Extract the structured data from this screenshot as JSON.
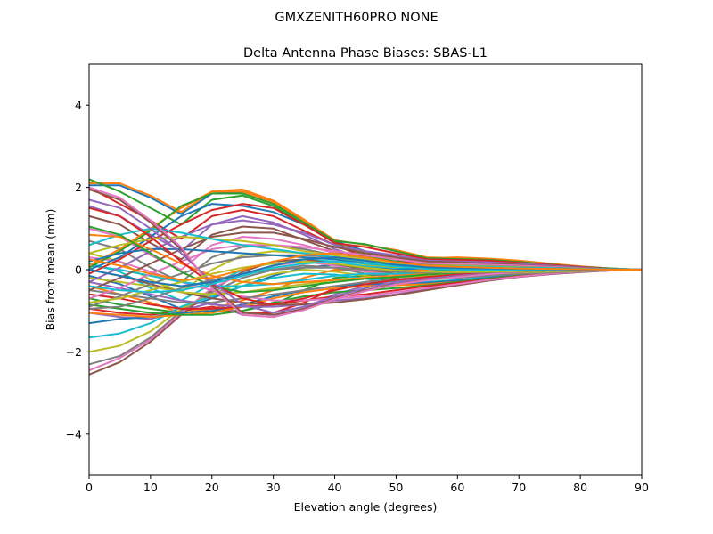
{
  "suptitle": "GMXZENITH60PRO  NONE",
  "chart_data": {
    "type": "line",
    "title": "Delta Antenna Phase Biases: SBAS-L1",
    "xlabel": "Elevation angle (degrees)",
    "ylabel": "Bias from mean (mm)",
    "xlim": [
      0,
      90
    ],
    "ylim": [
      -5,
      5
    ],
    "xticks": [
      "0",
      "10",
      "20",
      "30",
      "40",
      "50",
      "60",
      "70",
      "80",
      "90"
    ],
    "yticks": [
      "−4",
      "−2",
      "0",
      "2",
      "4"
    ],
    "grid": false,
    "legend": "none",
    "x": [
      0,
      5,
      10,
      15,
      20,
      25,
      30,
      35,
      40,
      45,
      50,
      55,
      60,
      65,
      70,
      75,
      80,
      85,
      90
    ],
    "palette": [
      "#1f77b4",
      "#ff7f0e",
      "#2ca02c",
      "#d62728",
      "#9467bd",
      "#8c564b",
      "#e377c2",
      "#7f7f7f",
      "#bcbd22",
      "#17becf"
    ],
    "series": [
      {
        "values": [
          2.05,
          2.05,
          1.75,
          1.35,
          1.85,
          1.9,
          1.65,
          1.2,
          0.7,
          0.35,
          0.2,
          0.25,
          0.25,
          0.2,
          0.18,
          0.13,
          0.07,
          0.03,
          0.0
        ]
      },
      {
        "values": [
          2.1,
          2.1,
          1.8,
          1.4,
          1.9,
          1.95,
          1.68,
          1.22,
          0.7,
          0.4,
          0.25,
          0.28,
          0.3,
          0.27,
          0.22,
          0.15,
          0.08,
          0.03,
          0.0
        ]
      },
      {
        "values": [
          2.2,
          1.9,
          1.5,
          1.1,
          1.7,
          1.8,
          1.55,
          1.1,
          0.65,
          0.35,
          0.2,
          0.22,
          0.25,
          0.22,
          0.18,
          0.12,
          0.06,
          0.02,
          0.0
        ]
      },
      {
        "values": [
          2.0,
          1.6,
          1.2,
          0.75,
          1.3,
          1.45,
          1.3,
          0.95,
          0.6,
          0.3,
          0.18,
          0.18,
          0.2,
          0.18,
          0.14,
          0.1,
          0.05,
          0.02,
          0.0
        ]
      },
      {
        "values": [
          1.55,
          1.3,
          0.85,
          0.45,
          1.1,
          1.3,
          1.15,
          0.85,
          0.5,
          0.25,
          0.12,
          0.14,
          0.16,
          0.15,
          0.12,
          0.08,
          0.04,
          0.02,
          0.0
        ]
      },
      {
        "values": [
          1.3,
          1.1,
          0.65,
          0.25,
          0.85,
          1.05,
          1.0,
          0.72,
          0.45,
          0.2,
          0.1,
          0.12,
          0.14,
          0.13,
          0.1,
          0.07,
          0.04,
          0.01,
          0.0
        ]
      },
      {
        "values": [
          1.0,
          0.8,
          0.35,
          0.0,
          0.6,
          0.8,
          0.75,
          0.6,
          0.4,
          0.2,
          0.1,
          0.12,
          0.14,
          0.12,
          0.09,
          0.06,
          0.03,
          0.01,
          0.0
        ]
      },
      {
        "values": [
          0.7,
          0.5,
          0.05,
          -0.3,
          0.3,
          0.55,
          0.6,
          0.5,
          0.35,
          0.15,
          0.08,
          0.1,
          0.12,
          0.1,
          0.08,
          0.05,
          0.03,
          0.01,
          0.0
        ]
      },
      {
        "values": [
          0.4,
          0.2,
          -0.25,
          -0.55,
          0.0,
          0.35,
          0.45,
          0.4,
          0.3,
          0.12,
          0.05,
          0.08,
          0.1,
          0.09,
          0.07,
          0.05,
          0.02,
          0.01,
          0.0
        ]
      },
      {
        "values": [
          0.15,
          -0.05,
          -0.45,
          -0.75,
          -0.35,
          0.0,
          0.2,
          0.25,
          0.2,
          0.08,
          0.02,
          0.05,
          0.08,
          0.07,
          0.05,
          0.03,
          0.02,
          0.0,
          0.0
        ]
      },
      {
        "values": [
          -0.15,
          -0.35,
          -0.65,
          -0.95,
          -0.7,
          -0.4,
          -0.15,
          0.05,
          0.12,
          0.05,
          0.0,
          0.03,
          0.05,
          0.05,
          0.04,
          0.03,
          0.01,
          0.0,
          0.0
        ]
      },
      {
        "values": [
          -0.4,
          -0.6,
          -0.8,
          -1.05,
          -0.95,
          -0.75,
          -0.5,
          -0.2,
          0.0,
          -0.02,
          -0.05,
          0.0,
          0.03,
          0.03,
          0.02,
          0.02,
          0.01,
          0.0,
          0.0
        ]
      },
      {
        "values": [
          -0.7,
          -0.85,
          -0.95,
          -1.05,
          -1.0,
          -1.0,
          -0.85,
          -0.5,
          -0.2,
          -0.15,
          -0.1,
          -0.05,
          0.0,
          0.01,
          0.01,
          0.01,
          0.0,
          0.0,
          0.0
        ]
      },
      {
        "values": [
          -0.95,
          -1.05,
          -1.1,
          -1.0,
          -0.9,
          -1.05,
          -1.05,
          -0.8,
          -0.45,
          -0.3,
          -0.2,
          -0.1,
          -0.05,
          -0.02,
          0.0,
          0.0,
          0.0,
          0.0,
          0.0
        ]
      },
      {
        "values": [
          -1.05,
          -1.15,
          -1.2,
          -1.0,
          -0.8,
          -1.1,
          -1.15,
          -0.95,
          -0.6,
          -0.4,
          -0.25,
          -0.15,
          -0.08,
          -0.04,
          -0.02,
          -0.01,
          0.0,
          0.0,
          0.0
        ]
      },
      {
        "values": [
          -2.55,
          -2.25,
          -1.75,
          -1.1,
          -0.5,
          -0.05,
          0.2,
          0.25,
          0.15,
          0.0,
          -0.1,
          -0.12,
          -0.1,
          -0.08,
          -0.06,
          -0.04,
          -0.02,
          -0.01,
          0.0
        ]
      },
      {
        "values": [
          -2.45,
          -2.15,
          -1.7,
          -1.05,
          -0.45,
          -0.1,
          0.1,
          0.2,
          0.1,
          -0.05,
          -0.12,
          -0.15,
          -0.13,
          -0.1,
          -0.07,
          -0.05,
          -0.03,
          -0.01,
          0.0
        ]
      },
      {
        "values": [
          -2.3,
          -2.1,
          -1.65,
          -1.0,
          -0.55,
          -0.2,
          0.0,
          0.1,
          0.05,
          -0.1,
          -0.18,
          -0.2,
          -0.17,
          -0.13,
          -0.09,
          -0.06,
          -0.03,
          -0.01,
          0.0
        ]
      },
      {
        "values": [
          -2.0,
          -1.85,
          -1.5,
          -0.95,
          -0.6,
          -0.3,
          -0.1,
          0.0,
          -0.05,
          -0.15,
          -0.25,
          -0.25,
          -0.2,
          -0.15,
          -0.1,
          -0.07,
          -0.04,
          -0.01,
          0.0
        ]
      },
      {
        "values": [
          -1.65,
          -1.55,
          -1.3,
          -0.9,
          -0.65,
          -0.4,
          -0.2,
          -0.1,
          -0.12,
          -0.22,
          -0.3,
          -0.3,
          -0.25,
          -0.18,
          -0.12,
          -0.08,
          -0.04,
          -0.02,
          0.0
        ]
      },
      {
        "values": [
          -1.3,
          -1.2,
          -1.15,
          -1.05,
          -1.0,
          -0.85,
          -0.65,
          -0.5,
          -0.4,
          -0.35,
          -0.35,
          -0.32,
          -0.27,
          -0.2,
          -0.14,
          -0.09,
          -0.05,
          -0.02,
          0.0
        ]
      },
      {
        "values": [
          -1.05,
          -1.1,
          -1.15,
          -1.1,
          -1.05,
          -0.9,
          -0.7,
          -0.55,
          -0.45,
          -0.4,
          -0.38,
          -0.35,
          -0.3,
          -0.22,
          -0.15,
          -0.1,
          -0.05,
          -0.02,
          0.0
        ]
      },
      {
        "values": [
          -0.85,
          -0.95,
          -1.05,
          -1.1,
          -1.1,
          -1.0,
          -0.8,
          -0.65,
          -0.55,
          -0.5,
          -0.45,
          -0.38,
          -0.3,
          -0.22,
          -0.15,
          -0.1,
          -0.05,
          -0.02,
          0.0
        ]
      },
      {
        "values": [
          -0.6,
          -0.7,
          -0.85,
          -0.95,
          -0.95,
          -0.9,
          -0.85,
          -0.75,
          -0.65,
          -0.6,
          -0.5,
          -0.4,
          -0.32,
          -0.24,
          -0.16,
          -0.1,
          -0.05,
          -0.02,
          0.0
        ]
      },
      {
        "values": [
          -0.3,
          -0.45,
          -0.6,
          -0.75,
          -0.85,
          -0.9,
          -0.9,
          -0.85,
          -0.75,
          -0.7,
          -0.6,
          -0.48,
          -0.36,
          -0.26,
          -0.17,
          -0.11,
          -0.06,
          -0.02,
          0.0
        ]
      },
      {
        "values": [
          0.0,
          -0.15,
          -0.35,
          -0.55,
          -0.7,
          -0.8,
          -0.85,
          -0.85,
          -0.8,
          -0.72,
          -0.62,
          -0.5,
          -0.38,
          -0.27,
          -0.18,
          -0.11,
          -0.06,
          -0.02,
          0.0
        ]
      },
      {
        "values": [
          0.3,
          0.2,
          -0.05,
          -0.3,
          -0.5,
          -0.65,
          -0.75,
          -0.75,
          -0.7,
          -0.65,
          -0.55,
          -0.45,
          -0.35,
          -0.25,
          -0.17,
          -0.1,
          -0.05,
          -0.02,
          0.0
        ]
      },
      {
        "values": [
          -0.5,
          -0.6,
          -0.7,
          -0.8,
          -0.8,
          -0.7,
          -0.6,
          -0.5,
          -0.4,
          -0.3,
          -0.25,
          -0.22,
          -0.2,
          -0.15,
          -0.1,
          -0.07,
          -0.04,
          -0.01,
          0.0
        ]
      },
      {
        "values": [
          -0.2,
          -0.3,
          -0.4,
          -0.55,
          -0.6,
          -0.55,
          -0.45,
          -0.35,
          -0.25,
          -0.2,
          -0.18,
          -0.15,
          -0.13,
          -0.1,
          -0.07,
          -0.05,
          -0.03,
          -0.01,
          0.0
        ]
      },
      {
        "values": [
          0.1,
          0.0,
          -0.15,
          -0.3,
          -0.4,
          -0.4,
          -0.35,
          -0.25,
          -0.15,
          -0.1,
          -0.1,
          -0.1,
          -0.08,
          -0.06,
          -0.04,
          -0.03,
          -0.02,
          -0.01,
          0.0
        ]
      },
      {
        "values": [
          0.0,
          0.3,
          0.8,
          1.3,
          1.6,
          1.55,
          1.4,
          1.1,
          0.7,
          0.45,
          0.3,
          0.22,
          0.2,
          0.18,
          0.15,
          0.1,
          0.06,
          0.02,
          0.0
        ]
      },
      {
        "values": [
          0.1,
          0.5,
          1.0,
          1.5,
          1.9,
          1.9,
          1.65,
          1.2,
          0.72,
          0.6,
          0.48,
          0.3,
          0.28,
          0.25,
          0.2,
          0.14,
          0.08,
          0.03,
          0.0
        ]
      },
      {
        "values": [
          0.05,
          0.45,
          0.95,
          1.55,
          1.85,
          1.85,
          1.6,
          1.15,
          0.7,
          0.62,
          0.45,
          0.28,
          0.26,
          0.24,
          0.19,
          0.13,
          0.07,
          0.03,
          0.0
        ]
      },
      {
        "values": [
          -0.1,
          0.25,
          0.7,
          1.1,
          1.45,
          1.6,
          1.5,
          1.1,
          0.65,
          0.55,
          0.4,
          0.25,
          0.24,
          0.22,
          0.17,
          0.12,
          0.07,
          0.02,
          0.0
        ]
      },
      {
        "values": [
          -0.3,
          0.05,
          0.45,
          0.8,
          1.1,
          1.2,
          1.1,
          0.9,
          0.6,
          0.45,
          0.35,
          0.22,
          0.2,
          0.18,
          0.15,
          0.1,
          0.06,
          0.02,
          0.0
        ]
      },
      {
        "values": [
          -0.5,
          -0.2,
          0.15,
          0.5,
          0.8,
          0.9,
          0.9,
          0.75,
          0.55,
          0.4,
          0.3,
          0.2,
          0.18,
          0.15,
          0.12,
          0.08,
          0.05,
          0.02,
          0.0
        ]
      },
      {
        "values": [
          -0.7,
          -0.45,
          -0.1,
          0.2,
          0.5,
          0.6,
          0.6,
          0.55,
          0.45,
          0.35,
          0.25,
          0.16,
          0.14,
          0.12,
          0.1,
          0.07,
          0.04,
          0.01,
          0.0
        ]
      },
      {
        "values": [
          -0.9,
          -0.65,
          -0.35,
          -0.1,
          0.15,
          0.3,
          0.35,
          0.35,
          0.3,
          0.25,
          0.18,
          0.12,
          0.1,
          0.09,
          0.07,
          0.05,
          0.03,
          0.01,
          0.0
        ]
      },
      {
        "values": [
          0.4,
          0.6,
          0.75,
          0.8,
          0.75,
          0.7,
          0.6,
          0.45,
          0.35,
          0.25,
          0.15,
          0.1,
          0.1,
          0.08,
          0.06,
          0.04,
          0.02,
          0.01,
          0.0
        ]
      },
      {
        "values": [
          0.6,
          0.85,
          1.0,
          0.9,
          0.75,
          0.6,
          0.5,
          0.4,
          0.3,
          0.2,
          0.12,
          0.08,
          0.08,
          0.07,
          0.05,
          0.04,
          0.02,
          0.01,
          0.0
        ]
      },
      {
        "values": [
          0.2,
          0.4,
          0.5,
          0.5,
          0.45,
          0.4,
          0.35,
          0.3,
          0.25,
          0.15,
          0.08,
          0.05,
          0.05,
          0.04,
          0.03,
          0.02,
          0.01,
          0.0,
          0.0
        ]
      },
      {
        "values": [
          0.85,
          0.8,
          0.5,
          0.15,
          -0.15,
          -0.3,
          -0.35,
          -0.3,
          -0.25,
          -0.2,
          -0.15,
          -0.1,
          -0.07,
          -0.05,
          -0.03,
          -0.02,
          -0.01,
          0.0,
          0.0
        ]
      },
      {
        "values": [
          1.05,
          0.85,
          0.4,
          -0.05,
          -0.4,
          -0.55,
          -0.5,
          -0.4,
          -0.3,
          -0.22,
          -0.18,
          -0.12,
          -0.08,
          -0.05,
          -0.03,
          -0.02,
          -0.01,
          0.0,
          0.0
        ]
      },
      {
        "values": [
          1.5,
          1.3,
          0.8,
          0.2,
          -0.35,
          -0.7,
          -0.85,
          -0.7,
          -0.5,
          -0.35,
          -0.25,
          -0.18,
          -0.12,
          -0.07,
          -0.04,
          -0.02,
          -0.01,
          0.0,
          0.0
        ]
      },
      {
        "values": [
          1.7,
          1.5,
          1.0,
          0.4,
          -0.3,
          -0.85,
          -1.05,
          -0.9,
          -0.65,
          -0.45,
          -0.3,
          -0.22,
          -0.15,
          -0.09,
          -0.05,
          -0.03,
          -0.01,
          0.0,
          0.0
        ]
      },
      {
        "values": [
          1.95,
          1.7,
          1.15,
          0.5,
          -0.4,
          -1.05,
          -1.1,
          -0.95,
          -0.7,
          -0.5,
          -0.35,
          -0.25,
          -0.17,
          -0.1,
          -0.06,
          -0.03,
          -0.01,
          0.0,
          0.0
        ]
      },
      {
        "values": [
          2.0,
          1.75,
          1.2,
          0.55,
          -0.45,
          -1.1,
          -1.15,
          -0.98,
          -0.72,
          -0.52,
          -0.36,
          -0.26,
          -0.18,
          -0.11,
          -0.06,
          -0.03,
          -0.01,
          0.0,
          0.0
        ]
      },
      {
        "values": [
          -0.95,
          -0.9,
          -0.7,
          -0.45,
          -0.25,
          -0.1,
          0.0,
          0.05,
          0.05,
          0.0,
          -0.05,
          -0.07,
          -0.07,
          -0.06,
          -0.05,
          -0.03,
          -0.02,
          -0.01,
          0.0
        ]
      },
      {
        "values": [
          -0.8,
          -0.7,
          -0.5,
          -0.3,
          -0.1,
          0.05,
          0.15,
          0.2,
          0.15,
          0.05,
          -0.02,
          -0.05,
          -0.06,
          -0.05,
          -0.04,
          -0.03,
          -0.02,
          -0.01,
          0.0
        ]
      },
      {
        "values": [
          -0.4,
          -0.5,
          -0.55,
          -0.5,
          -0.35,
          -0.15,
          0.05,
          0.15,
          0.2,
          0.15,
          0.08,
          0.02,
          0.0,
          0.0,
          0.0,
          0.0,
          0.0,
          0.0,
          0.0
        ]
      },
      {
        "values": [
          0.0,
          -0.15,
          -0.3,
          -0.4,
          -0.3,
          -0.1,
          0.1,
          0.25,
          0.3,
          0.22,
          0.12,
          0.06,
          0.04,
          0.03,
          0.02,
          0.01,
          0.0,
          0.0,
          0.0
        ]
      },
      {
        "values": [
          0.25,
          0.1,
          -0.1,
          -0.25,
          -0.2,
          0.0,
          0.2,
          0.35,
          0.4,
          0.3,
          0.18,
          0.1,
          0.07,
          0.05,
          0.03,
          0.02,
          0.01,
          0.0,
          0.0
        ]
      }
    ]
  }
}
